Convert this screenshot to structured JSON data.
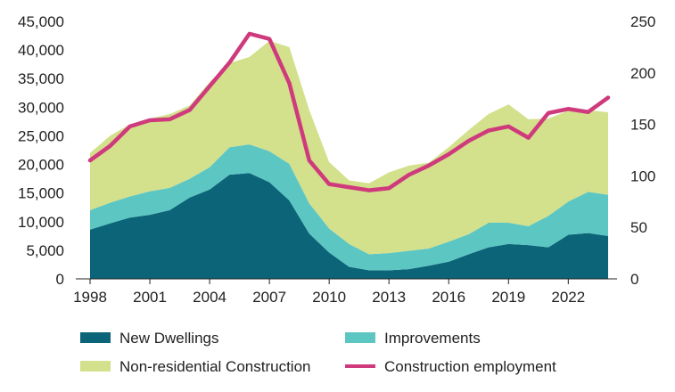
{
  "chart_data": {
    "type": "area",
    "title": "",
    "xlabel": "",
    "ylabel": "",
    "x": [
      1998,
      1999,
      2000,
      2001,
      2002,
      2003,
      2004,
      2005,
      2006,
      2007,
      2008,
      2009,
      2010,
      2011,
      2012,
      2013,
      2014,
      2015,
      2016,
      2017,
      2018,
      2019,
      2020,
      2021,
      2022,
      2023,
      2024
    ],
    "x_tick_labels": [
      "1998",
      "2001",
      "2004",
      "2007",
      "2010",
      "2013",
      "2016",
      "2019",
      "2022"
    ],
    "y_left": {
      "ylim": [
        0,
        45000
      ],
      "tick_labels": [
        "0",
        "5,000",
        "10,000",
        "15,000",
        "20,000",
        "25,000",
        "30,000",
        "35,000",
        "40,000",
        "45,000"
      ]
    },
    "y_right": {
      "ylim": [
        0,
        250
      ],
      "tick_labels": [
        "0",
        "50",
        "100",
        "150",
        "200",
        "250"
      ]
    },
    "series": [
      {
        "name": "New Dwellings",
        "type": "stacked-area",
        "axis": "left",
        "color": "#0b6478",
        "values": [
          8600,
          9700,
          10700,
          11200,
          12000,
          14200,
          15600,
          18200,
          18500,
          16900,
          13700,
          7900,
          4600,
          2100,
          1500,
          1500,
          1700,
          2300,
          3000,
          4300,
          5500,
          6100,
          5900,
          5500,
          7700,
          8000,
          7500
        ]
      },
      {
        "name": "Improvements",
        "type": "stacked-area",
        "axis": "left",
        "color": "#5cc6c2",
        "values": [
          3400,
          3600,
          3700,
          4100,
          3900,
          3300,
          3900,
          4800,
          5000,
          5400,
          6400,
          5300,
          4200,
          4000,
          2800,
          3000,
          3200,
          3000,
          3500,
          3500,
          4300,
          3700,
          3300,
          5500,
          5800,
          7200,
          7200
        ]
      },
      {
        "name": "Non-residential Construction",
        "type": "stacked-area",
        "axis": "left",
        "color": "#d3e08c",
        "values": [
          10000,
          11700,
          12600,
          12700,
          12900,
          12800,
          14900,
          14700,
          15300,
          19300,
          20400,
          16300,
          11600,
          11100,
          12400,
          14100,
          14900,
          15000,
          16500,
          18200,
          19000,
          20700,
          18700,
          17000,
          15900,
          14300,
          14400
        ]
      },
      {
        "name": "Construction employment",
        "type": "line",
        "axis": "right",
        "color": "#cf3a7d",
        "values": [
          115,
          129,
          148,
          154,
          155,
          164,
          187,
          210,
          238,
          233,
          190,
          115,
          92,
          89,
          86,
          88,
          101,
          110,
          121,
          134,
          144,
          148,
          137,
          161,
          165,
          162,
          176
        ]
      }
    ],
    "legend_position": "bottom"
  }
}
